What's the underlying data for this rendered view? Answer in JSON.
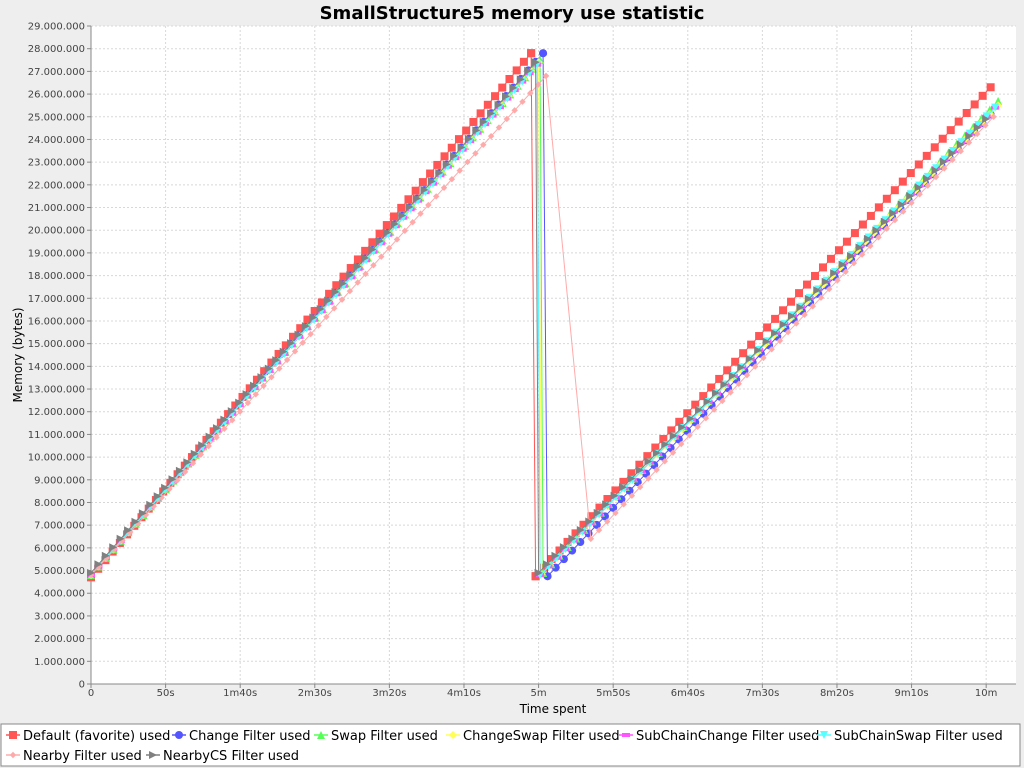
{
  "chart_data": {
    "type": "line",
    "title": "SmallStructure5 memory use statistic",
    "xlabel": "Time spent",
    "ylabel": "Memory (bytes)",
    "xlim": [
      0,
      620
    ],
    "ylim": [
      0,
      29000000
    ],
    "grid": true,
    "legend_position": "bottom",
    "x_ticks": [
      {
        "value": 0,
        "label": "0"
      },
      {
        "value": 50,
        "label": "50s"
      },
      {
        "value": 100,
        "label": "1m40s"
      },
      {
        "value": 150,
        "label": "2m30s"
      },
      {
        "value": 200,
        "label": "3m20s"
      },
      {
        "value": 250,
        "label": "4m10s"
      },
      {
        "value": 300,
        "label": "5m"
      },
      {
        "value": 350,
        "label": "5m50s"
      },
      {
        "value": 400,
        "label": "6m40s"
      },
      {
        "value": 450,
        "label": "7m30s"
      },
      {
        "value": 500,
        "label": "8m20s"
      },
      {
        "value": 550,
        "label": "9m10s"
      },
      {
        "value": 600,
        "label": "10m"
      }
    ],
    "y_ticks": [
      {
        "value": 0,
        "label": "0"
      },
      {
        "value": 1000000,
        "label": "1.000.000"
      },
      {
        "value": 2000000,
        "label": "2.000.000"
      },
      {
        "value": 3000000,
        "label": "3.000.000"
      },
      {
        "value": 4000000,
        "label": "4.000.000"
      },
      {
        "value": 5000000,
        "label": "5.000.000"
      },
      {
        "value": 6000000,
        "label": "6.000.000"
      },
      {
        "value": 7000000,
        "label": "7.000.000"
      },
      {
        "value": 8000000,
        "label": "8.000.000"
      },
      {
        "value": 9000000,
        "label": "9.000.000"
      },
      {
        "value": 10000000,
        "label": "10.000.000"
      },
      {
        "value": 11000000,
        "label": "11.000.000"
      },
      {
        "value": 12000000,
        "label": "12.000.000"
      },
      {
        "value": 13000000,
        "label": "13.000.000"
      },
      {
        "value": 14000000,
        "label": "14.000.000"
      },
      {
        "value": 15000000,
        "label": "15.000.000"
      },
      {
        "value": 16000000,
        "label": "16.000.000"
      },
      {
        "value": 17000000,
        "label": "17.000.000"
      },
      {
        "value": 18000000,
        "label": "18.000.000"
      },
      {
        "value": 19000000,
        "label": "19.000.000"
      },
      {
        "value": 20000000,
        "label": "20.000.000"
      },
      {
        "value": 21000000,
        "label": "21.000.000"
      },
      {
        "value": 22000000,
        "label": "22.000.000"
      },
      {
        "value": 23000000,
        "label": "23.000.000"
      },
      {
        "value": 24000000,
        "label": "24.000.000"
      },
      {
        "value": 25000000,
        "label": "25.000.000"
      },
      {
        "value": 26000000,
        "label": "26.000.000"
      },
      {
        "value": 27000000,
        "label": "27.000.000"
      },
      {
        "value": 28000000,
        "label": "28.000.000"
      },
      {
        "value": 29000000,
        "label": "29.000.000"
      }
    ],
    "series": [
      {
        "name": "Default (favorite) used",
        "color": "#ff5555",
        "marker": "square",
        "points": [
          [
            0,
            4700000
          ],
          [
            295,
            27800000
          ],
          [
            298,
            4750000
          ],
          [
            603,
            26300000
          ]
        ]
      },
      {
        "name": "Change Filter used",
        "color": "#5555ff",
        "marker": "circle",
        "points": [
          [
            0,
            4800000
          ],
          [
            303,
            27800000
          ],
          [
            306,
            4750000
          ],
          [
            603,
            25100000
          ]
        ]
      },
      {
        "name": "Swap Filter used",
        "color": "#55ff55",
        "marker": "triangle-up",
        "points": [
          [
            0,
            4800000
          ],
          [
            301,
            27500000
          ],
          [
            303,
            4900000
          ],
          [
            608,
            25700000
          ]
        ]
      },
      {
        "name": "ChangeSwap Filter used",
        "color": "#ffff55",
        "marker": "diamond",
        "points": [
          [
            0,
            4800000
          ],
          [
            300,
            27400000
          ],
          [
            302,
            4850000
          ],
          [
            608,
            25500000
          ]
        ]
      },
      {
        "name": "SubChainChange Filter used",
        "color": "#ff55ff",
        "marker": "rect",
        "points": [
          [
            0,
            4800000
          ],
          [
            299,
            27300000
          ],
          [
            301,
            4800000
          ],
          [
            606,
            25400000
          ]
        ]
      },
      {
        "name": "SubChainSwap Filter used",
        "color": "#55ffff",
        "marker": "triangle-down",
        "points": [
          [
            0,
            4800000
          ],
          [
            299,
            27300000
          ],
          [
            301,
            4800000
          ],
          [
            606,
            25400000
          ]
        ]
      },
      {
        "name": "Nearby Filter used",
        "color": "#ffaaaa",
        "marker": "small-diamond",
        "points": [
          [
            0,
            4800000
          ],
          [
            305,
            26800000
          ],
          [
            335,
            6400000
          ],
          [
            605,
            25000000
          ]
        ]
      },
      {
        "name": "NearbyCS Filter used",
        "color": "#808080",
        "marker": "triangle-right",
        "points": [
          [
            0,
            4900000
          ],
          [
            298,
            27400000
          ],
          [
            300,
            4900000
          ],
          [
            600,
            24900000
          ]
        ]
      }
    ]
  }
}
